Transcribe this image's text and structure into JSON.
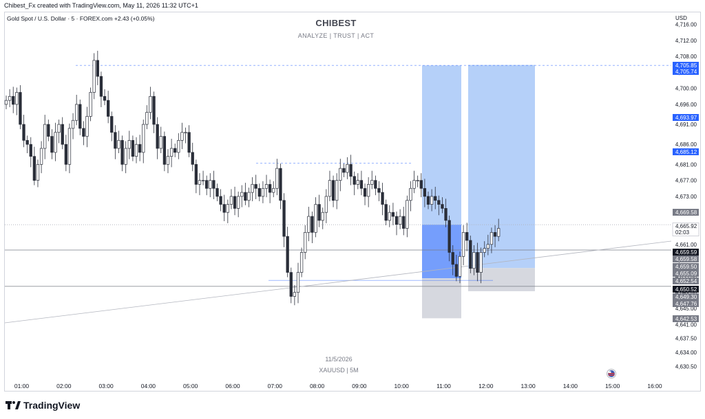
{
  "header": {
    "credit": "Chibest_Fx created with TradingView.com, May 11, 2026 11:32 UTC+1"
  },
  "legend": {
    "symbol": "Gold Spot / U.S. Dollar · 5 · FOREX.com",
    "change": "+2.43 (+0.05%)"
  },
  "watermark": {
    "title": "CHIBEST",
    "subtitle": "ANALYZE | TRUST | ACT",
    "date": "11/5/2026",
    "symbol": "XAUUSD | 5M"
  },
  "footer": {
    "brand": "TradingView"
  },
  "colors": {
    "candle_up": "#ffffff",
    "candle_down": "#2a2e39",
    "candle_outline": "#2a2e39",
    "target_zone": "#a8c8f8",
    "target_zone_fill": "#2962ff",
    "stop_zone": "#d1d4dc",
    "price_tag_blue": "#2962ff",
    "price_tag_grey": "#787b86",
    "price_tag_black": "#131722"
  },
  "chart_data": {
    "type": "candlestick",
    "symbol": "XAUUSD",
    "timeframe": "5",
    "currency": "USD",
    "ylim": [
      4628,
      4719
    ],
    "x_tick_labels": [
      "01:00",
      "02:00",
      "03:00",
      "04:00",
      "05:00",
      "06:00",
      "07:00",
      "08:00",
      "09:00",
      "10:00",
      "11:00",
      "12:00",
      "13:00",
      "14:00",
      "15:00",
      "16:00"
    ],
    "y_tick_labels": [
      "4,716.00",
      "4,712.00",
      "4,708.00",
      "4,704.00",
      "4,700.00",
      "4,696.00",
      "4,691.00",
      "4,686.00",
      "4,681.00",
      "4,677.00",
      "4,673.00",
      "4,669.00",
      "4,665.00",
      "4,661.00",
      "4,657.00",
      "4,653.00",
      "4,649.00",
      "4,645.00",
      "4,641.00",
      "4,637.50",
      "4,634.00",
      "4,630.50"
    ],
    "candles_close": [
      4697,
      4698,
      4696,
      4699,
      4691,
      4687,
      4686,
      4683,
      4677,
      4681,
      4685,
      4691,
      4688,
      4684,
      4689,
      4691,
      4686,
      4681,
      4690,
      4692,
      4696,
      4690,
      4688,
      4693,
      4699,
      4707,
      4703,
      4698,
      4697,
      4693,
      4689,
      4685,
      4687,
      4681,
      4685,
      4687,
      4683,
      4686,
      4684,
      4691,
      4694,
      4698,
      4691,
      4685,
      4688,
      4681,
      4683,
      4685,
      4684,
      4687,
      4689,
      4689,
      4684,
      4681,
      4676,
      4677,
      4677,
      4675,
      4677,
      4675,
      4673,
      4671,
      4669,
      4671,
      4673,
      4670,
      4673,
      4674,
      4672,
      4674,
      4676,
      4675,
      4673,
      4675,
      4676,
      4674,
      4675,
      4680,
      4672,
      4663,
      4654,
      4648,
      4649,
      4654,
      4659,
      4664,
      4668,
      4664,
      4671,
      4667,
      4669,
      4673,
      4677,
      4672,
      4677,
      4680,
      4679,
      4681,
      4678,
      4676,
      4677,
      4675,
      4673,
      4676,
      4677,
      4675,
      4674,
      4671,
      4667,
      4669,
      4668,
      4666,
      4668,
      4665,
      4672,
      4675,
      4677,
      4677,
      4675,
      4673,
      4671,
      4673,
      4672,
      4671,
      4670,
      4667,
      4659,
      4656,
      4653,
      4658,
      4664,
      4662,
      4655,
      4659,
      4654,
      4659,
      4660,
      4661,
      4664,
      4663,
      4665
    ],
    "horizontal_levels": [
      4705.85,
      4705.74,
      4693.97,
      4685.12,
      4669.58,
      4665.92,
      4659.59,
      4659.58,
      4659.5,
      4655.09,
      4652.54,
      4650.52,
      4649.3,
      4647.76,
      4642.53
    ],
    "price_tags": [
      {
        "label": "USD",
        "style": "plain"
      },
      {
        "label": "4,705.85",
        "style": "blue"
      },
      {
        "label": "4,705.74",
        "style": "blue"
      },
      {
        "label": "4,693.97",
        "style": "blue"
      },
      {
        "label": "4,685.12",
        "style": "blue"
      },
      {
        "label": "4,669.58",
        "style": "grey"
      },
      {
        "label": "4,665.92",
        "style": "light",
        "extra": "02:03"
      },
      {
        "label": "4,659.59",
        "style": "black"
      },
      {
        "label": "4,659.58",
        "style": "grey"
      },
      {
        "label": "4,659.50",
        "style": "grey"
      },
      {
        "label": "4,655.09",
        "style": "grey"
      },
      {
        "label": "4,652.54",
        "style": "grey"
      },
      {
        "label": "4,650.52",
        "style": "black"
      },
      {
        "label": "4,649.30",
        "style": "grey"
      },
      {
        "label": "4,647.76",
        "style": "grey"
      },
      {
        "label": "4,642.53",
        "style": "grey"
      }
    ],
    "position_boxes": [
      {
        "kind": "long",
        "entry": 4652.54,
        "target": 4705.74,
        "stop": 4642.53
      },
      {
        "kind": "long",
        "entry": 4655.09,
        "target": 4705.85,
        "stop": 4649.3
      }
    ]
  }
}
